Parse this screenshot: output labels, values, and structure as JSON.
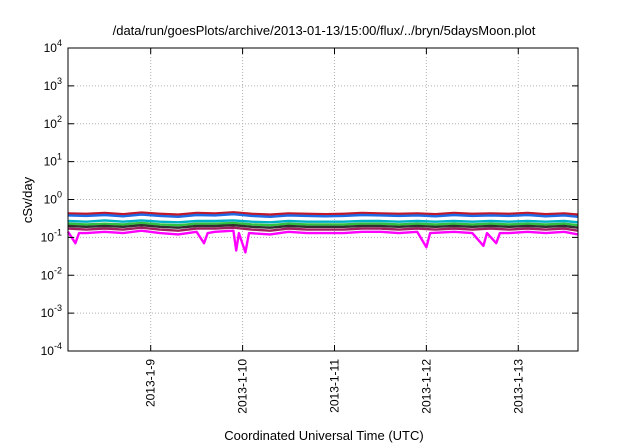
{
  "chart_data": {
    "type": "line",
    "title": "/data/run/goesPlots/archive/2013-01-13/15:00/flux/../bryn/5daysMoon.plot",
    "xlabel": "Coordinated Universal Time (UTC)",
    "ylabel": "cSv/day",
    "yscale": "log",
    "ylim": [
      0.0001,
      10000
    ],
    "xlim": [
      8.1,
      13.65
    ],
    "xlim_units": "days of January 2013",
    "grid": true,
    "legend": "none",
    "x_ticks": [
      {
        "value": 9,
        "label": "2013-1-9"
      },
      {
        "value": 10,
        "label": "2013-1-10"
      },
      {
        "value": 11,
        "label": "2013-1-11"
      },
      {
        "value": 12,
        "label": "2013-1-12"
      },
      {
        "value": 13,
        "label": "2013-1-13"
      }
    ],
    "y_ticks": [
      {
        "value": 0.0001,
        "base": "10",
        "exp": "-4"
      },
      {
        "value": 0.001,
        "base": "10",
        "exp": "-3"
      },
      {
        "value": 0.01,
        "base": "10",
        "exp": "-2"
      },
      {
        "value": 0.1,
        "base": "10",
        "exp": "-1"
      },
      {
        "value": 1,
        "base": "10",
        "exp": "0"
      },
      {
        "value": 10,
        "base": "10",
        "exp": "1"
      },
      {
        "value": 100,
        "base": "10",
        "exp": "2"
      },
      {
        "value": 1000,
        "base": "10",
        "exp": "3"
      },
      {
        "value": 10000,
        "base": "10",
        "exp": "4"
      }
    ],
    "series": [
      {
        "color": "#c0182a",
        "values": [
          [
            8.1,
            0.43
          ],
          [
            8.3,
            0.42
          ],
          [
            8.5,
            0.44
          ],
          [
            8.7,
            0.41
          ],
          [
            8.9,
            0.45
          ],
          [
            9.1,
            0.42
          ],
          [
            9.3,
            0.4
          ],
          [
            9.5,
            0.44
          ],
          [
            9.7,
            0.43
          ],
          [
            9.9,
            0.46
          ],
          [
            10.1,
            0.42
          ],
          [
            10.3,
            0.4
          ],
          [
            10.5,
            0.43
          ],
          [
            10.7,
            0.42
          ],
          [
            10.9,
            0.41
          ],
          [
            11.1,
            0.42
          ],
          [
            11.3,
            0.44
          ],
          [
            11.5,
            0.43
          ],
          [
            11.7,
            0.42
          ],
          [
            11.9,
            0.43
          ],
          [
            12.1,
            0.41
          ],
          [
            12.3,
            0.44
          ],
          [
            12.5,
            0.42
          ],
          [
            12.7,
            0.43
          ],
          [
            12.9,
            0.42
          ],
          [
            13.1,
            0.44
          ],
          [
            13.3,
            0.41
          ],
          [
            13.5,
            0.43
          ],
          [
            13.65,
            0.4
          ]
        ]
      },
      {
        "color": "#1e6be6",
        "values": [
          [
            8.1,
            0.38
          ],
          [
            8.3,
            0.37
          ],
          [
            8.5,
            0.39
          ],
          [
            8.7,
            0.36
          ],
          [
            8.9,
            0.4
          ],
          [
            9.1,
            0.37
          ],
          [
            9.3,
            0.35
          ],
          [
            9.5,
            0.39
          ],
          [
            9.7,
            0.38
          ],
          [
            9.9,
            0.41
          ],
          [
            10.1,
            0.37
          ],
          [
            10.3,
            0.35
          ],
          [
            10.5,
            0.38
          ],
          [
            10.7,
            0.37
          ],
          [
            10.9,
            0.36
          ],
          [
            11.1,
            0.37
          ],
          [
            11.3,
            0.39
          ],
          [
            11.5,
            0.38
          ],
          [
            11.7,
            0.37
          ],
          [
            11.9,
            0.38
          ],
          [
            12.1,
            0.36
          ],
          [
            12.3,
            0.39
          ],
          [
            12.5,
            0.37
          ],
          [
            12.7,
            0.38
          ],
          [
            12.9,
            0.37
          ],
          [
            13.1,
            0.39
          ],
          [
            13.3,
            0.36
          ],
          [
            13.5,
            0.38
          ],
          [
            13.65,
            0.35
          ]
        ]
      },
      {
        "color": "#00b0c8",
        "values": [
          [
            8.1,
            0.27
          ],
          [
            8.3,
            0.26
          ],
          [
            8.5,
            0.28
          ],
          [
            8.7,
            0.26
          ],
          [
            8.9,
            0.28
          ],
          [
            9.1,
            0.26
          ],
          [
            9.3,
            0.25
          ],
          [
            9.5,
            0.27
          ],
          [
            9.7,
            0.27
          ],
          [
            9.9,
            0.28
          ],
          [
            10.1,
            0.26
          ],
          [
            10.3,
            0.25
          ],
          [
            10.5,
            0.27
          ],
          [
            10.7,
            0.26
          ],
          [
            10.9,
            0.26
          ],
          [
            11.1,
            0.26
          ],
          [
            11.3,
            0.27
          ],
          [
            11.5,
            0.27
          ],
          [
            11.7,
            0.26
          ],
          [
            11.9,
            0.27
          ],
          [
            12.1,
            0.26
          ],
          [
            12.3,
            0.27
          ],
          [
            12.5,
            0.26
          ],
          [
            12.7,
            0.27
          ],
          [
            12.9,
            0.26
          ],
          [
            13.1,
            0.27
          ],
          [
            13.3,
            0.26
          ],
          [
            13.5,
            0.27
          ],
          [
            13.65,
            0.25
          ]
        ]
      },
      {
        "color": "#30c040",
        "values": [
          [
            8.1,
            0.23
          ],
          [
            8.3,
            0.22
          ],
          [
            8.5,
            0.23
          ],
          [
            8.7,
            0.22
          ],
          [
            8.9,
            0.24
          ],
          [
            9.1,
            0.22
          ],
          [
            9.3,
            0.21
          ],
          [
            9.5,
            0.23
          ],
          [
            9.7,
            0.23
          ],
          [
            9.9,
            0.24
          ],
          [
            10.1,
            0.22
          ],
          [
            10.3,
            0.21
          ],
          [
            10.5,
            0.23
          ],
          [
            10.7,
            0.22
          ],
          [
            10.9,
            0.22
          ],
          [
            11.1,
            0.22
          ],
          [
            11.3,
            0.23
          ],
          [
            11.5,
            0.23
          ],
          [
            11.7,
            0.22
          ],
          [
            11.9,
            0.23
          ],
          [
            12.1,
            0.22
          ],
          [
            12.3,
            0.23
          ],
          [
            12.5,
            0.22
          ],
          [
            12.7,
            0.23
          ],
          [
            12.9,
            0.22
          ],
          [
            13.1,
            0.23
          ],
          [
            13.3,
            0.22
          ],
          [
            13.5,
            0.23
          ],
          [
            13.65,
            0.21
          ]
        ]
      },
      {
        "color": "#303030",
        "values": [
          [
            8.1,
            0.2
          ],
          [
            8.3,
            0.19
          ],
          [
            8.5,
            0.2
          ],
          [
            8.7,
            0.19
          ],
          [
            8.9,
            0.21
          ],
          [
            9.1,
            0.19
          ],
          [
            9.3,
            0.18
          ],
          [
            9.5,
            0.2
          ],
          [
            9.7,
            0.2
          ],
          [
            9.9,
            0.21
          ],
          [
            10.1,
            0.19
          ],
          [
            10.3,
            0.18
          ],
          [
            10.5,
            0.2
          ],
          [
            10.7,
            0.19
          ],
          [
            10.9,
            0.19
          ],
          [
            11.1,
            0.19
          ],
          [
            11.3,
            0.2
          ],
          [
            11.5,
            0.2
          ],
          [
            11.7,
            0.19
          ],
          [
            11.9,
            0.2
          ],
          [
            12.1,
            0.19
          ],
          [
            12.3,
            0.2
          ],
          [
            12.5,
            0.19
          ],
          [
            12.7,
            0.2
          ],
          [
            12.9,
            0.19
          ],
          [
            13.1,
            0.2
          ],
          [
            13.3,
            0.19
          ],
          [
            13.5,
            0.2
          ],
          [
            13.65,
            0.18
          ]
        ]
      },
      {
        "color": "#a02060",
        "values": [
          [
            8.1,
            0.17
          ],
          [
            8.3,
            0.16
          ],
          [
            8.5,
            0.17
          ],
          [
            8.7,
            0.16
          ],
          [
            8.9,
            0.18
          ],
          [
            9.1,
            0.16
          ],
          [
            9.3,
            0.15
          ],
          [
            9.5,
            0.17
          ],
          [
            9.7,
            0.17
          ],
          [
            9.9,
            0.18
          ],
          [
            10.1,
            0.16
          ],
          [
            10.3,
            0.15
          ],
          [
            10.5,
            0.17
          ],
          [
            10.7,
            0.16
          ],
          [
            10.9,
            0.16
          ],
          [
            11.1,
            0.16
          ],
          [
            11.3,
            0.17
          ],
          [
            11.5,
            0.17
          ],
          [
            11.7,
            0.16
          ],
          [
            11.9,
            0.17
          ],
          [
            12.1,
            0.16
          ],
          [
            12.3,
            0.17
          ],
          [
            12.5,
            0.16
          ],
          [
            12.7,
            0.17
          ],
          [
            12.9,
            0.16
          ],
          [
            13.1,
            0.17
          ],
          [
            13.3,
            0.16
          ],
          [
            13.5,
            0.17
          ],
          [
            13.65,
            0.15
          ]
        ]
      },
      {
        "color": "#ff00ff",
        "values": [
          [
            8.1,
            0.14
          ],
          [
            8.18,
            0.07
          ],
          [
            8.22,
            0.13
          ],
          [
            8.3,
            0.13
          ],
          [
            8.5,
            0.14
          ],
          [
            8.7,
            0.13
          ],
          [
            8.9,
            0.15
          ],
          [
            9.1,
            0.13
          ],
          [
            9.3,
            0.12
          ],
          [
            9.5,
            0.14
          ],
          [
            9.58,
            0.07
          ],
          [
            9.62,
            0.13
          ],
          [
            9.7,
            0.14
          ],
          [
            9.9,
            0.15
          ],
          [
            9.93,
            0.045
          ],
          [
            9.96,
            0.13
          ],
          [
            10.03,
            0.04
          ],
          [
            10.07,
            0.13
          ],
          [
            10.3,
            0.12
          ],
          [
            10.5,
            0.14
          ],
          [
            10.7,
            0.13
          ],
          [
            10.9,
            0.13
          ],
          [
            11.1,
            0.13
          ],
          [
            11.3,
            0.14
          ],
          [
            11.5,
            0.14
          ],
          [
            11.7,
            0.13
          ],
          [
            11.9,
            0.14
          ],
          [
            12.0,
            0.055
          ],
          [
            12.04,
            0.13
          ],
          [
            12.3,
            0.14
          ],
          [
            12.5,
            0.13
          ],
          [
            12.62,
            0.06
          ],
          [
            12.66,
            0.13
          ],
          [
            12.76,
            0.07
          ],
          [
            12.8,
            0.13
          ],
          [
            12.9,
            0.13
          ],
          [
            13.1,
            0.14
          ],
          [
            13.3,
            0.13
          ],
          [
            13.5,
            0.14
          ],
          [
            13.65,
            0.12
          ]
        ]
      }
    ]
  }
}
